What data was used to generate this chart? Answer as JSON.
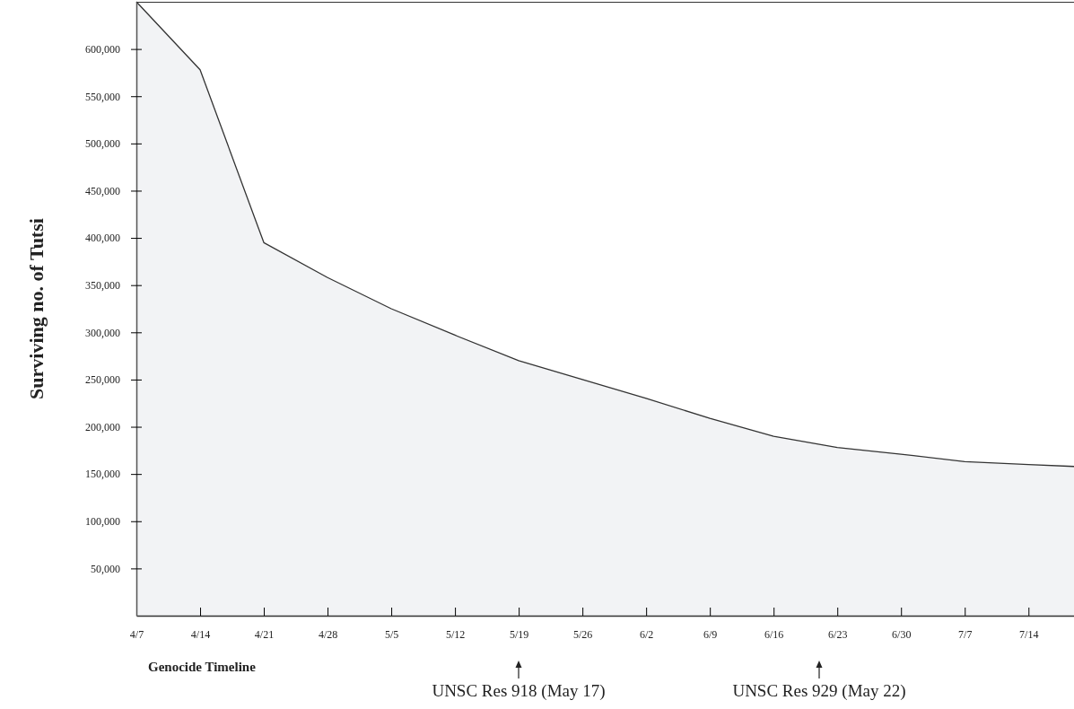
{
  "chart_data": {
    "type": "area",
    "xlabel": "Genocide Timeline",
    "ylabel": "Surviving no. of Tutsi",
    "x": [
      "--04-07",
      "--04-14",
      "--04-21",
      "--04-28",
      "--05-05",
      "--05-12",
      "--05-19",
      "--05-26",
      "--06-02",
      "--06-09",
      "--06-16",
      "--06-23",
      "--06-30",
      "--07-07",
      "--07-14",
      "--07-19"
    ],
    "series": [
      {
        "color": "#333333",
        "values": [
          650000,
          578000,
          395000,
          358000,
          325000,
          297000,
          270000,
          250000,
          230000,
          209000,
          190000,
          178000,
          171000,
          163000,
          160000,
          158000
        ]
      }
    ],
    "xlim": [
      "--04-07",
      "--07-19"
    ],
    "xticks": [
      {
        "value": "--04-07",
        "label": "4/7"
      },
      {
        "value": "--04-14",
        "label": "4/14"
      },
      {
        "value": "--04-21",
        "label": "4/21"
      },
      {
        "value": "--04-28",
        "label": "4/28"
      },
      {
        "value": "--05-05",
        "label": "5/5"
      },
      {
        "value": "--05-12",
        "label": "5/12"
      },
      {
        "value": "--05-19",
        "label": "5/19"
      },
      {
        "value": "--05-26",
        "label": "5/26"
      },
      {
        "value": "--06-02",
        "label": "6/2"
      },
      {
        "value": "--06-09",
        "label": "6/9"
      },
      {
        "value": "--06-16",
        "label": "6/16"
      },
      {
        "value": "--06-23",
        "label": "6/23"
      },
      {
        "value": "--06-30",
        "label": "6/30"
      },
      {
        "value": "--07-07",
        "label": "7/7"
      },
      {
        "value": "--07-14",
        "label": "7/14"
      }
    ],
    "ylim": [
      0,
      650000
    ],
    "yticks": [
      {
        "value": 50000,
        "label": "50,000"
      },
      {
        "value": 100000,
        "label": "100,000"
      },
      {
        "value": 150000,
        "label": "150,000"
      },
      {
        "value": 200000,
        "label": "200,000"
      },
      {
        "value": 250000,
        "label": "250,000"
      },
      {
        "value": 300000,
        "label": "300,000"
      },
      {
        "value": 350000,
        "label": "350,000"
      },
      {
        "value": 400000,
        "label": "400,000"
      },
      {
        "value": 450000,
        "label": "450,000"
      },
      {
        "value": 500000,
        "label": "500,000"
      },
      {
        "value": 550000,
        "label": "550,000"
      },
      {
        "value": 600000,
        "label": "600,000"
      }
    ],
    "annotations": [
      "UNSC Res 918 (May 17)",
      "UNSC Res 929 (May 22)"
    ]
  }
}
